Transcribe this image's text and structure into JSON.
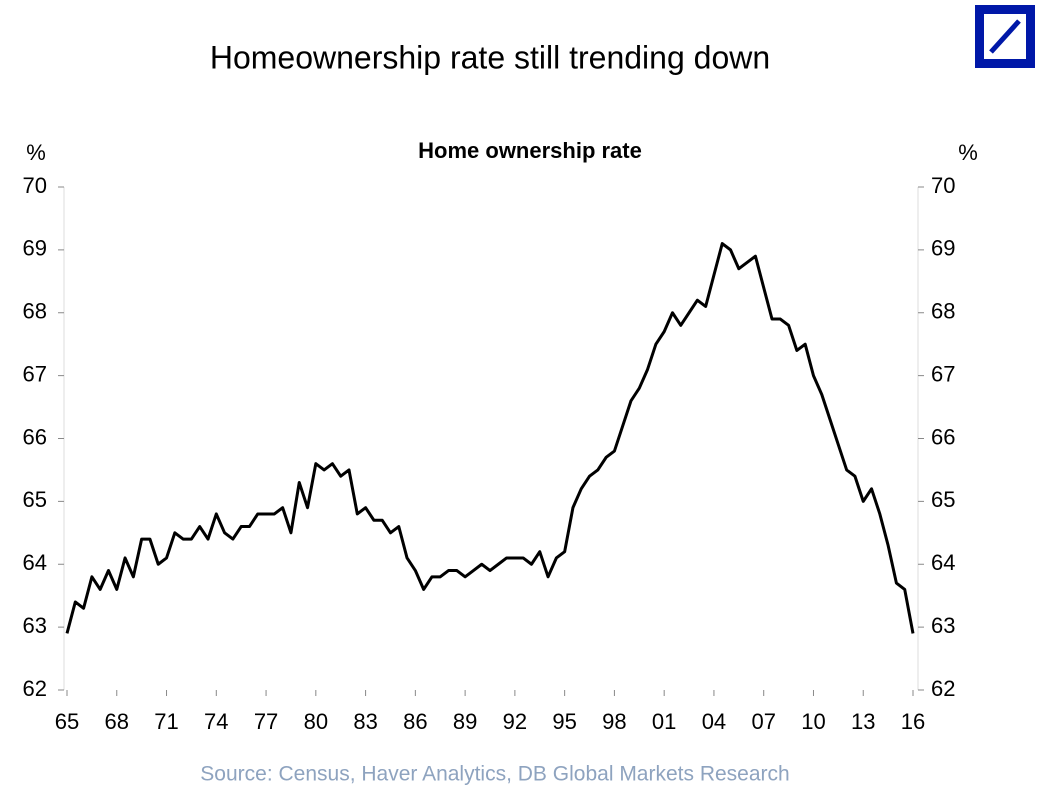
{
  "chart_data": {
    "type": "line",
    "title": "Homeownership rate still trending down",
    "subtitle": "Home ownership rate",
    "y_label": "%",
    "source": "Source: Census, Haver Analytics, DB Global Markets Research",
    "x": [
      1965,
      1965.5,
      1966,
      1966.5,
      1967,
      1967.5,
      1968,
      1968.5,
      1969,
      1969.5,
      1970,
      1970.5,
      1971,
      1971.5,
      1972,
      1972.5,
      1973,
      1973.5,
      1974,
      1974.5,
      1975,
      1975.5,
      1976,
      1976.5,
      1977,
      1977.5,
      1978,
      1978.5,
      1979,
      1979.5,
      1980,
      1980.5,
      1981,
      1981.5,
      1982,
      1982.5,
      1983,
      1983.5,
      1984,
      1984.5,
      1985,
      1985.5,
      1986,
      1986.5,
      1987,
      1987.5,
      1988,
      1988.5,
      1989,
      1989.5,
      1990,
      1990.5,
      1991,
      1991.5,
      1992,
      1992.5,
      1993,
      1993.5,
      1994,
      1994.5,
      1995,
      1995.5,
      1996,
      1996.5,
      1997,
      1997.5,
      1998,
      1998.5,
      1999,
      1999.5,
      2000,
      2000.5,
      2001,
      2001.5,
      2002,
      2002.5,
      2003,
      2003.5,
      2004,
      2004.5,
      2005,
      2005.5,
      2006,
      2006.5,
      2007,
      2007.5,
      2008,
      2008.5,
      2009,
      2009.5,
      2010,
      2010.5,
      2011,
      2011.5,
      2012,
      2012.5,
      2013,
      2013.5,
      2014,
      2014.5,
      2015,
      2015.5,
      2016
    ],
    "series": [
      {
        "name": "Home ownership rate",
        "color": "#000000",
        "values": [
          62.9,
          63.4,
          63.3,
          63.8,
          63.6,
          63.9,
          63.6,
          64.1,
          63.8,
          64.4,
          64.4,
          64.0,
          64.1,
          64.5,
          64.4,
          64.4,
          64.6,
          64.4,
          64.8,
          64.5,
          64.4,
          64.6,
          64.6,
          64.8,
          64.8,
          64.8,
          64.9,
          64.5,
          65.3,
          64.9,
          65.6,
          65.5,
          65.6,
          65.4,
          65.5,
          64.8,
          64.9,
          64.7,
          64.7,
          64.5,
          64.6,
          64.1,
          63.9,
          63.6,
          63.8,
          63.8,
          63.9,
          63.9,
          63.8,
          63.9,
          64.0,
          63.9,
          64.0,
          64.1,
          64.1,
          64.1,
          64.0,
          64.2,
          63.8,
          64.1,
          64.2,
          64.9,
          65.2,
          65.4,
          65.5,
          65.7,
          65.8,
          66.2,
          66.6,
          66.8,
          67.1,
          67.5,
          67.7,
          68.0,
          67.8,
          68.0,
          68.2,
          68.1,
          68.6,
          69.1,
          69.0,
          68.7,
          68.8,
          68.9,
          68.4,
          67.9,
          67.9,
          67.8,
          67.4,
          67.5,
          67.0,
          66.7,
          66.3,
          65.9,
          65.5,
          65.4,
          65.0,
          65.2,
          64.8,
          64.3,
          63.7,
          63.6,
          62.9
        ]
      }
    ],
    "xlim": [
      1965,
      2016
    ],
    "xticks": [
      {
        "value": 1965,
        "label": "65"
      },
      {
        "value": 1968,
        "label": "68"
      },
      {
        "value": 1971,
        "label": "71"
      },
      {
        "value": 1974,
        "label": "74"
      },
      {
        "value": 1977,
        "label": "77"
      },
      {
        "value": 1980,
        "label": "80"
      },
      {
        "value": 1983,
        "label": "83"
      },
      {
        "value": 1986,
        "label": "86"
      },
      {
        "value": 1989,
        "label": "89"
      },
      {
        "value": 1992,
        "label": "92"
      },
      {
        "value": 1995,
        "label": "95"
      },
      {
        "value": 1998,
        "label": "98"
      },
      {
        "value": 2001,
        "label": "01"
      },
      {
        "value": 2004,
        "label": "04"
      },
      {
        "value": 2007,
        "label": "07"
      },
      {
        "value": 2010,
        "label": "10"
      },
      {
        "value": 2013,
        "label": "13"
      },
      {
        "value": 2016,
        "label": "16"
      }
    ],
    "ylim": [
      62,
      70
    ],
    "yticks": [
      62,
      63,
      64,
      65,
      66,
      67,
      68,
      69,
      70
    ]
  }
}
